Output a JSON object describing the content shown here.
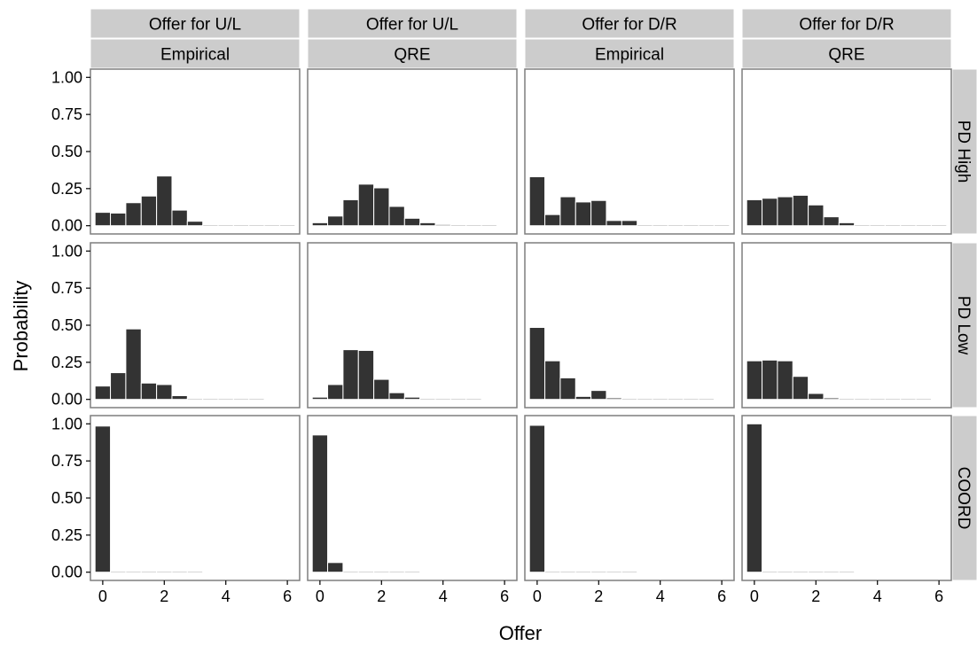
{
  "chart_data": {
    "type": "bar",
    "xlabel": "Offer",
    "ylabel": "Probability",
    "xlim": [
      -0.4,
      6.4
    ],
    "ylim": [
      0,
      1
    ],
    "x_ticks": [
      "0",
      "2",
      "4",
      "6"
    ],
    "y_ticks": [
      "0.00",
      "0.25",
      "0.50",
      "0.75",
      "1.00"
    ],
    "bin_centers": [
      0,
      0.5,
      1,
      1.5,
      2,
      2.5,
      3,
      3.5,
      4,
      4.5,
      5,
      5.5,
      6
    ],
    "col_strips": [
      {
        "top": "Offer for U/L",
        "bottom": "Empirical"
      },
      {
        "top": "Offer for U/L",
        "bottom": "QRE"
      },
      {
        "top": "Offer for D/R",
        "bottom": "Empirical"
      },
      {
        "top": "Offer for D/R",
        "bottom": "QRE"
      }
    ],
    "row_strips": [
      "PD High",
      "PD Low",
      "COORD"
    ],
    "panels": [
      [
        [
          0.09,
          0.085,
          0.155,
          0.2,
          0.335,
          0.105,
          0.03,
          0.003,
          0.003,
          0.003,
          0.003,
          0.003,
          0.003
        ],
        [
          0.02,
          0.065,
          0.175,
          0.28,
          0.255,
          0.13,
          0.05,
          0.02,
          0.008,
          0.003,
          0.003,
          0.003
        ],
        [
          0.33,
          0.075,
          0.195,
          0.16,
          0.17,
          0.035,
          0.035,
          0.003,
          0.003,
          0.003,
          0.003,
          0.003,
          0.003
        ],
        [
          0.175,
          0.185,
          0.195,
          0.205,
          0.14,
          0.06,
          0.02,
          0.005,
          0.003,
          0.003,
          0.003,
          0.003,
          0.003
        ]
      ],
      [
        [
          0.09,
          0.18,
          0.475,
          0.11,
          0.1,
          0.025,
          0.005,
          0.003,
          0.003,
          0.003,
          0.003
        ],
        [
          0.015,
          0.1,
          0.335,
          0.33,
          0.135,
          0.045,
          0.015,
          0.005,
          0.003,
          0.003,
          0.003
        ],
        [
          0.485,
          0.26,
          0.145,
          0.02,
          0.06,
          0.01,
          0.003,
          0.003,
          0.003,
          0.003,
          0.003,
          0.003
        ],
        [
          0.26,
          0.265,
          0.26,
          0.155,
          0.04,
          0.01,
          0.005,
          0.003,
          0.003,
          0.003,
          0.003,
          0.003
        ]
      ],
      [
        [
          0.985,
          0.005,
          0.003,
          0.003,
          0.003,
          0.003,
          0.003
        ],
        [
          0.925,
          0.065,
          0.003,
          0.003,
          0.003,
          0.003,
          0.003
        ],
        [
          0.99,
          0.003,
          0.003,
          0.003,
          0.003,
          0.003,
          0.003
        ],
        [
          1.0,
          0.003,
          0.003,
          0.003,
          0.003,
          0.003,
          0.003
        ]
      ]
    ]
  }
}
